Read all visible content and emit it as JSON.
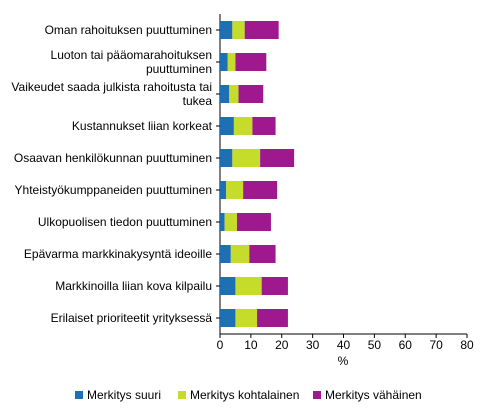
{
  "chart_data": {
    "type": "stacked-horizontal-bar",
    "x_label": "%",
    "categories": [
      "Oman rahoituksen puuttuminen",
      "Luoton tai pääomarahoituksen puuttuminen",
      "Vaikeudet saada julkista rahoitusta tai tukea",
      "Kustannukset liian korkeat",
      "Osaavan henkilökunnan puuttuminen",
      "Yhteistyökumppaneiden puuttuminen",
      "Ulkopuolisen tiedon puuttuminen",
      "Epävarma markkinakysyntä ideoille",
      "Markkinoilla liian kova kilpailu",
      "Erilaiset prioriteetit yrityksessä"
    ],
    "series": [
      {
        "name": "Merkitys suuri",
        "color": "#1f6fb5",
        "values": [
          4,
          2.5,
          3,
          4.5,
          4,
          2,
          1.5,
          3.5,
          5,
          5
        ]
      },
      {
        "name": "Merkitys kohtalainen",
        "color": "#c5dc2a",
        "values": [
          4,
          2.5,
          3,
          6,
          9,
          5.5,
          4,
          6,
          8.5,
          7
        ]
      },
      {
        "name": "Merkitys vähäinen",
        "color": "#a0188e",
        "values": [
          11,
          10,
          8,
          7.5,
          11,
          11,
          11,
          8.5,
          8.5,
          10
        ]
      }
    ],
    "xlim": [
      0,
      80
    ],
    "xticks": [
      0,
      10,
      20,
      30,
      40,
      50,
      60,
      70,
      80
    ],
    "legend": "bottom"
  }
}
